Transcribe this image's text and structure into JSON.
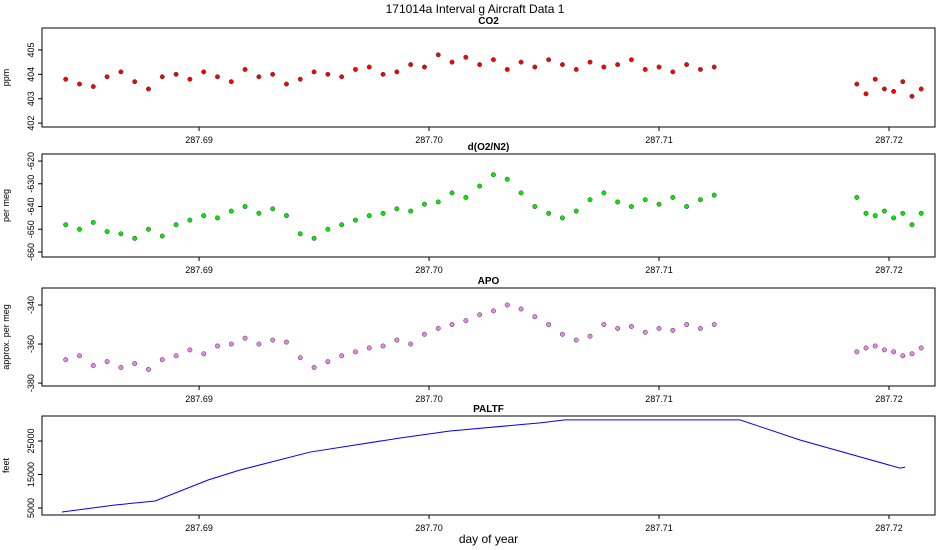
{
  "title": "171014a   Interval g Aircraft Data 1",
  "chart_data": [
    {
      "type": "scatter",
      "title": "CO2",
      "y_label": "ppm",
      "color": "#ff0000",
      "x": [
        287.6842,
        287.6848,
        287.6854,
        287.686,
        287.6866,
        287.6872,
        287.6878,
        287.6884,
        287.689,
        287.6896,
        287.6902,
        287.6908,
        287.6914,
        287.692,
        287.6926,
        287.6932,
        287.6938,
        287.6944,
        287.695,
        287.6956,
        287.6962,
        287.6968,
        287.6974,
        287.698,
        287.6986,
        287.6992,
        287.6998,
        287.7004,
        287.701,
        287.7016,
        287.7022,
        287.7028,
        287.7034,
        287.704,
        287.7046,
        287.7052,
        287.7058,
        287.7064,
        287.707,
        287.7076,
        287.7082,
        287.7088,
        287.7094,
        287.71,
        287.7106,
        287.7112,
        287.7118,
        287.7124,
        287.7186,
        287.719,
        287.7194,
        287.7198,
        287.7202,
        287.7206,
        287.721,
        287.7214
      ],
      "values": [
        403.8,
        403.6,
        403.5,
        403.9,
        404.1,
        403.7,
        403.4,
        403.9,
        404.0,
        403.8,
        404.1,
        403.9,
        403.7,
        404.2,
        403.9,
        404.0,
        403.6,
        403.8,
        404.1,
        404.0,
        403.9,
        404.2,
        404.3,
        404.0,
        404.1,
        404.4,
        404.3,
        404.8,
        404.5,
        404.7,
        404.4,
        404.6,
        404.2,
        404.5,
        404.3,
        404.6,
        404.4,
        404.2,
        404.5,
        404.3,
        404.4,
        404.6,
        404.2,
        404.3,
        404.1,
        404.4,
        404.2,
        404.3,
        403.6,
        403.2,
        403.8,
        403.4,
        403.3,
        403.7,
        403.1,
        403.4
      ],
      "xlim": [
        287.68317,
        287.722
      ],
      "xticks": [
        287.69,
        {
          "value": 287.7,
          "label": "287.70"
        },
        287.71,
        287.72
      ],
      "ylim": [
        401.84,
        405.9
      ],
      "yticks": [
        402,
        403,
        404,
        405
      ]
    },
    {
      "type": "scatter",
      "title": "d(O2/N2)",
      "y_label": "per meg",
      "color": "#00ee00",
      "x": [
        287.6842,
        287.6848,
        287.6854,
        287.686,
        287.6866,
        287.6872,
        287.6878,
        287.6884,
        287.689,
        287.6896,
        287.6902,
        287.6908,
        287.6914,
        287.692,
        287.6926,
        287.6932,
        287.6938,
        287.6944,
        287.695,
        287.6956,
        287.6962,
        287.6968,
        287.6974,
        287.698,
        287.6986,
        287.6992,
        287.6998,
        287.7004,
        287.701,
        287.7016,
        287.7022,
        287.7028,
        287.7034,
        287.704,
        287.7046,
        287.7052,
        287.7058,
        287.7064,
        287.707,
        287.7076,
        287.7082,
        287.7088,
        287.7094,
        287.71,
        287.7106,
        287.7112,
        287.7118,
        287.7124,
        287.7186,
        287.719,
        287.7194,
        287.7198,
        287.7202,
        287.7206,
        287.721,
        287.7214
      ],
      "values": [
        -648,
        -650,
        -647,
        -651,
        -652,
        -654,
        -650,
        -653,
        -648,
        -646,
        -644,
        -645,
        -642,
        -640,
        -643,
        -641,
        -644,
        -652,
        -654,
        -650,
        -648,
        -646,
        -644,
        -643,
        -641,
        -642,
        -639,
        -638,
        -634,
        -636,
        -631,
        -626,
        -628,
        -634,
        -640,
        -643,
        -645,
        -642,
        -637,
        -634,
        -638,
        -640,
        -637,
        -639,
        -636,
        -640,
        -637,
        -635,
        -636,
        -643,
        -644,
        -642,
        -645,
        -643,
        -648,
        -643
      ],
      "xlim": [
        287.68317,
        287.722
      ],
      "xticks": [
        287.69,
        {
          "value": 287.7,
          "label": "287.70"
        },
        287.71,
        287.72
      ],
      "ylim": [
        -662.2,
        -616.9
      ],
      "yticks": [
        -660,
        -650,
        -640,
        -630,
        -620
      ]
    },
    {
      "type": "scatter",
      "title": "APO",
      "y_label": "approx. per meg",
      "color": "#ee82ee",
      "x": [
        287.6842,
        287.6848,
        287.6854,
        287.686,
        287.6866,
        287.6872,
        287.6878,
        287.6884,
        287.689,
        287.6896,
        287.6902,
        287.6908,
        287.6914,
        287.692,
        287.6926,
        287.6932,
        287.6938,
        287.6944,
        287.695,
        287.6956,
        287.6962,
        287.6968,
        287.6974,
        287.698,
        287.6986,
        287.6992,
        287.6998,
        287.7004,
        287.701,
        287.7016,
        287.7022,
        287.7028,
        287.7034,
        287.704,
        287.7046,
        287.7052,
        287.7058,
        287.7064,
        287.707,
        287.7076,
        287.7082,
        287.7088,
        287.7094,
        287.71,
        287.7106,
        287.7112,
        287.7118,
        287.7124,
        287.7186,
        287.719,
        287.7194,
        287.7198,
        287.7202,
        287.7206,
        287.721,
        287.7214
      ],
      "values": [
        -368,
        -366,
        -371,
        -369,
        -372,
        -370,
        -373,
        -368,
        -366,
        -363,
        -365,
        -361,
        -360,
        -357,
        -360,
        -358,
        -359,
        -367,
        -372,
        -369,
        -366,
        -364,
        -362,
        -361,
        -358,
        -360,
        -355,
        -352,
        -350,
        -348,
        -345,
        -343,
        -340,
        -342,
        -346,
        -350,
        -355,
        -358,
        -356,
        -350,
        -352,
        -351,
        -354,
        -352,
        -353,
        -350,
        -352,
        -350,
        -364,
        -362,
        -361,
        -363,
        -364,
        -366,
        -365,
        -362
      ],
      "xlim": [
        287.68317,
        287.722
      ],
      "xticks": [
        287.69,
        {
          "value": 287.7,
          "label": "287.70"
        },
        287.71,
        287.72
      ],
      "ylim": [
        -381.5,
        -331.3
      ],
      "yticks": [
        -380,
        -360,
        -340
      ]
    },
    {
      "type": "line",
      "title": "PALTF",
      "y_label": "feet",
      "x_label": "day of year",
      "color": "#0000ff",
      "x": [
        287.68404,
        287.68635,
        287.68809,
        287.69039,
        287.69178,
        287.69483,
        287.69874,
        287.70091,
        287.70483,
        287.70591,
        287.71352,
        287.71613,
        287.72048,
        287.7207
      ],
      "values": [
        3800,
        5900,
        7100,
        13360,
        16340,
        21700,
        25900,
        28000,
        30400,
        31300,
        31300,
        25300,
        16900,
        17200
      ],
      "xlim": [
        287.68317,
        287.722
      ],
      "xticks": [
        287.69,
        {
          "value": 287.7,
          "label": "287.70"
        },
        287.71,
        287.72
      ],
      "ylim": [
        2910,
        32463
      ],
      "yticks": [
        5000,
        15000,
        25000
      ]
    }
  ]
}
